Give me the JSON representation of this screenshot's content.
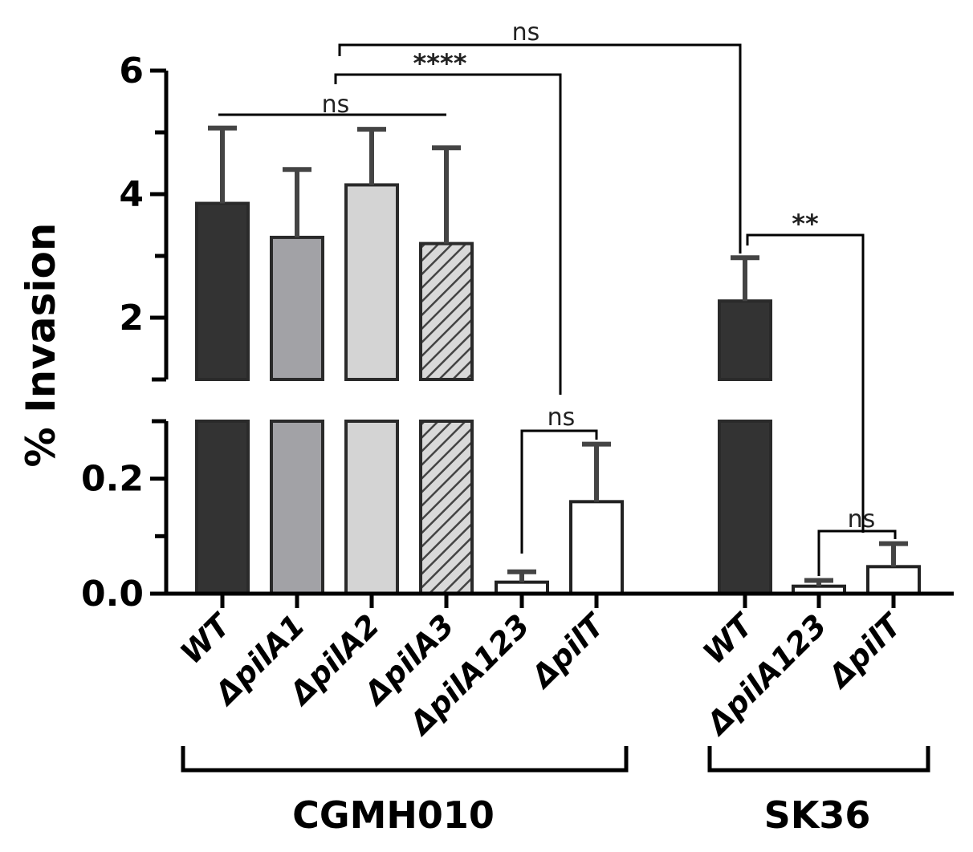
{
  "chart_data": {
    "type": "bar",
    "title": "",
    "ylabel": "% Invasion",
    "xlabel": "",
    "y_axis_break": {
      "lower_segment": {
        "range": [
          0,
          0.3
        ],
        "ticks": [
          "0.0",
          "0.2"
        ],
        "tick_values": [
          0,
          0.2
        ]
      },
      "upper_segment": {
        "range": [
          1,
          6
        ],
        "ticks": [
          "2",
          "4",
          "6"
        ],
        "tick_values": [
          2,
          4,
          6
        ]
      }
    },
    "categories": [
      "WT",
      "ΔpilA1",
      "ΔpilA2",
      "ΔpilA3",
      "ΔpilA123",
      "ΔpilT",
      "WT",
      "ΔpilA123",
      "ΔpilT"
    ],
    "values": [
      3.85,
      3.3,
      4.15,
      3.2,
      0.02,
      0.16,
      2.27,
      0.013,
      0.047
    ],
    "errors": [
      1.22,
      1.1,
      0.9,
      1.55,
      0.018,
      0.1,
      0.7,
      0.01,
      0.04
    ],
    "bar_fills": [
      "#333333",
      "#a2a2a6",
      "#d4d4d4",
      "hatch",
      "#ffffff",
      "#ffffff",
      "#333333",
      "#ffffff",
      "#ffffff"
    ],
    "groups": [
      {
        "name": "CGMH010",
        "members": [
          0,
          1,
          2,
          3,
          4,
          5
        ]
      },
      {
        "name": "SK36",
        "members": [
          6,
          7,
          8
        ]
      }
    ],
    "significance": [
      {
        "label": "ns",
        "from": 0,
        "to": 3
      },
      {
        "label": "****",
        "from": 1,
        "to": 4
      },
      {
        "label": "ns",
        "from": 1,
        "to": 6
      },
      {
        "label": "ns",
        "from": 4,
        "to": 5
      },
      {
        "label": "**",
        "from": 6,
        "to": 7
      },
      {
        "label": "ns",
        "from": 7,
        "to": 8
      }
    ]
  }
}
